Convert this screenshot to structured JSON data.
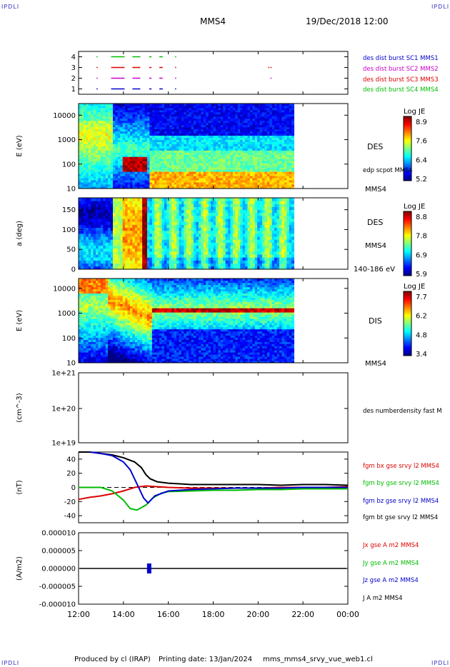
{
  "corner_label": "IPDLI",
  "header": {
    "spacecraft": "MMS4",
    "datetime": "19/Dec/2018 12:00"
  },
  "footer": {
    "produced_by": "Produced by cl (IRAP)",
    "printing_date": "Printing date: 13/Jan/2024",
    "file": "mms_mms4_srvy_vue_web1.cl"
  },
  "colors": {
    "blue": "#0000cc",
    "magenta": "#cc00cc",
    "red": "#dd0000",
    "green": "#00bb00",
    "black": "#000000"
  },
  "chart_data": [
    {
      "id": "burst",
      "type": "scatter",
      "ylim": [
        0.5,
        4.5
      ],
      "yticks": [
        "1",
        "2",
        "3",
        "4"
      ],
      "legend": [
        {
          "text": "des dist burst SC1 MMS1",
          "color": "#0000cc",
          "level": 1
        },
        {
          "text": "des dist burst SC2 MMS2",
          "color": "#cc00cc",
          "level": 2
        },
        {
          "text": "des dist burst SC3 MMS3",
          "color": "#dd0000",
          "level": 3
        },
        {
          "text": "des dist burst SC4 MMS4",
          "color": "#00bb00",
          "level": 4
        }
      ],
      "segments_hours": [
        [
          12.8,
          12.85
        ],
        [
          13.45,
          14.05
        ],
        [
          14.4,
          14.75
        ],
        [
          15.15,
          15.25
        ],
        [
          15.6,
          15.75
        ],
        [
          16.3,
          16.35
        ]
      ],
      "extra_hours": [
        [
          20.45,
          20.5
        ],
        [
          20.55,
          20.6
        ]
      ]
    },
    {
      "id": "des_energy",
      "type": "heatmap",
      "ylabel": "E (eV)",
      "yscale": "log",
      "ylim": [
        10,
        30000
      ],
      "yticks": [
        "10",
        "100",
        "1000",
        "10000"
      ],
      "colorbar": {
        "title": "Log JE",
        "ticks": [
          "8.9",
          "7.6",
          "6.4",
          "5.2"
        ]
      },
      "right_labels": [
        "DES",
        "edp scpot MMS4",
        "MMS4"
      ]
    },
    {
      "id": "des_pitch",
      "type": "heatmap",
      "ylabel": "a (deg)",
      "ylim": [
        0,
        180
      ],
      "yticks": [
        "0",
        "50",
        "100",
        "150"
      ],
      "colorbar": {
        "title": "Log JE",
        "ticks": [
          "8.8",
          "7.8",
          "6.9",
          "5.9"
        ]
      },
      "right_labels": [
        "DES",
        "MMS4",
        "140-186 eV"
      ]
    },
    {
      "id": "dis_energy",
      "type": "heatmap",
      "ylabel": "E (eV)",
      "yscale": "log",
      "ylim": [
        10,
        25000
      ],
      "yticks": [
        "10",
        "100",
        "1000",
        "10000"
      ],
      "colorbar": {
        "title": "Log JE",
        "ticks": [
          "7.7",
          "6.2",
          "4.8",
          "3.4"
        ]
      },
      "right_labels": [
        "DIS",
        "MMS4"
      ]
    },
    {
      "id": "density",
      "type": "line",
      "ylabel": "(cm^-3)",
      "yscale": "log",
      "ylim": [
        1e+19,
        1e+21
      ],
      "yticks": [
        "1e+19",
        "1e+20",
        "1e+21"
      ],
      "legend": [
        "des numberdensity fast M"
      ]
    },
    {
      "id": "fgm",
      "type": "line",
      "ylabel": "(nT)",
      "ylim": [
        -50,
        50
      ],
      "yticks": [
        "-40",
        "-20",
        "0",
        "20",
        "40"
      ],
      "legend": [
        {
          "text": "fgm bx gse srvy l2 MMS4",
          "color": "#dd0000"
        },
        {
          "text": "fgm by gse srvy l2 MMS4",
          "color": "#00bb00"
        },
        {
          "text": "fgm bz gse srvy l2 MMS4",
          "color": "#0000cc"
        },
        {
          "text": "fgm bt gse srvy l2 MMS4",
          "color": "#000000"
        }
      ],
      "series": [
        {
          "name": "fgm bt gse srvy l2 MMS4",
          "color": "#000000",
          "x": [
            12.0,
            12.5,
            13.0,
            13.5,
            14.0,
            14.5,
            14.8,
            15.0,
            15.2,
            15.5,
            16.0,
            16.5,
            17.0,
            18.0,
            19.0,
            20.0,
            21.0,
            22.0,
            23.0,
            24.0
          ],
          "y": [
            50,
            50,
            48,
            46,
            42,
            36,
            28,
            18,
            12,
            8,
            6,
            5,
            4,
            4,
            4,
            4,
            3,
            4,
            4,
            3
          ]
        },
        {
          "name": "fgm bx gse srvy l2 MMS4",
          "color": "#dd0000",
          "x": [
            12.0,
            12.5,
            13.0,
            13.5,
            14.0,
            14.5,
            15.0,
            15.5,
            16.0,
            17.0,
            18.0,
            19.0,
            20.0,
            21.0,
            22.0,
            23.0,
            24.0
          ],
          "y": [
            -17,
            -14,
            -12,
            -9,
            -5,
            0,
            2,
            1,
            0,
            -1,
            -1,
            -1,
            -1,
            0,
            0,
            0,
            1
          ]
        },
        {
          "name": "fgm by gse srvy l2 MMS4",
          "color": "#00bb00",
          "x": [
            12.0,
            13.0,
            13.5,
            14.0,
            14.3,
            14.6,
            15.0,
            15.3,
            15.7,
            16.0,
            17.0,
            18.0,
            19.0,
            20.0,
            21.0,
            22.0,
            23.0,
            24.0
          ],
          "y": [
            0,
            0,
            -5,
            -18,
            -30,
            -32,
            -25,
            -15,
            -8,
            -6,
            -5,
            -4,
            -4,
            -3,
            -3,
            -2,
            -2,
            -2
          ]
        },
        {
          "name": "fgm bz gse srvy l2 MMS4",
          "color": "#0000cc",
          "x": [
            12.5,
            13.0,
            13.5,
            14.0,
            14.3,
            14.6,
            14.9,
            15.1,
            15.4,
            16.0,
            17.0,
            18.0,
            19.0,
            20.0,
            21.0,
            22.0,
            23.0,
            24.0
          ],
          "y": [
            50,
            48,
            45,
            36,
            25,
            5,
            -15,
            -22,
            -12,
            -5,
            -3,
            -2,
            -1,
            -1,
            -1,
            0,
            0,
            0
          ]
        }
      ]
    },
    {
      "id": "current",
      "type": "line",
      "ylabel": "(A/m2)",
      "ylim": [
        -1e-05,
        1e-05
      ],
      "yticks": [
        "-0.000010",
        "-0.000005",
        "0.000000",
        "0.000005",
        "0.000010"
      ],
      "legend": [
        {
          "text": "Jx gse A m2 MMS4",
          "color": "#dd0000"
        },
        {
          "text": "Jy gse A m2 MMS4",
          "color": "#00bb00"
        },
        {
          "text": "Jz gse A m2 MMS4",
          "color": "#0000cc"
        },
        {
          "text": "J A m2 MMS4",
          "color": "#000000"
        }
      ]
    }
  ],
  "xaxis": {
    "ticks": [
      "12:00",
      "14:00",
      "16:00",
      "18:00",
      "20:00",
      "22:00",
      "00:00"
    ],
    "range_hours": [
      12,
      24
    ]
  }
}
